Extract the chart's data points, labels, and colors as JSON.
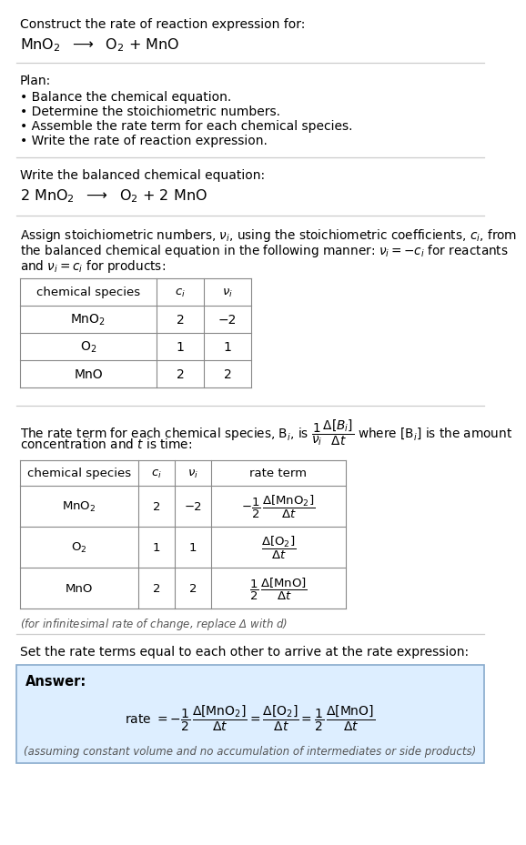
{
  "bg_color": "#ffffff",
  "text_color": "#000000",
  "title_line1": "Construct the rate of reaction expression for:",
  "reaction_unbalanced": "MnO$_2$  $\\longrightarrow$  O$_2$ + MnO",
  "plan_header": "Plan:",
  "plan_items": [
    "• Balance the chemical equation.",
    "• Determine the stoichiometric numbers.",
    "• Assemble the rate term for each chemical species.",
    "• Write the rate of reaction expression."
  ],
  "balanced_header": "Write the balanced chemical equation:",
  "reaction_balanced": "2 MnO$_2$  $\\longrightarrow$  O$_2$ + 2 MnO",
  "stoich_lines": [
    "Assign stoichiometric numbers, $\\nu_i$, using the stoichiometric coefficients, $c_i$, from",
    "the balanced chemical equation in the following manner: $\\nu_i = -c_i$ for reactants",
    "and $\\nu_i = c_i$ for products:"
  ],
  "table1_headers": [
    "chemical species",
    "$c_i$",
    "$\\nu_i$"
  ],
  "table1_col_styles": [
    "normal",
    "italic",
    "italic"
  ],
  "table1_rows": [
    [
      "MnO$_2$",
      "2",
      "−2"
    ],
    [
      "O$_2$",
      "1",
      "1"
    ],
    [
      "MnO",
      "2",
      "2"
    ]
  ],
  "rate_lines": [
    "The rate term for each chemical species, B$_i$, is $\\dfrac{1}{\\nu_i}\\dfrac{\\Delta[B_i]}{\\Delta t}$ where [B$_i$] is the amount",
    "concentration and $t$ is time:"
  ],
  "table2_headers": [
    "chemical species",
    "$c_i$",
    "$\\nu_i$",
    "rate term"
  ],
  "table2_col_styles": [
    "normal",
    "italic",
    "italic",
    "normal"
  ],
  "table2_rows": [
    [
      "MnO$_2$",
      "2",
      "−2",
      "$-\\dfrac{1}{2}\\,\\dfrac{\\Delta[\\mathrm{MnO_2}]}{\\Delta t}$"
    ],
    [
      "O$_2$",
      "1",
      "1",
      "$\\dfrac{\\Delta[\\mathrm{O_2}]}{\\Delta t}$"
    ],
    [
      "MnO",
      "2",
      "2",
      "$\\dfrac{1}{2}\\,\\dfrac{\\Delta[\\mathrm{MnO}]}{\\Delta t}$"
    ]
  ],
  "infinitesimal_note": "(for infinitesimal rate of change, replace Δ with $d$)",
  "set_equal_text": "Set the rate terms equal to each other to arrive at the rate expression:",
  "answer_box_color": "#ddeeff",
  "answer_box_border": "#88aacc",
  "answer_label": "Answer:",
  "answer_note": "(assuming constant volume and no accumulation of intermediates or side products)"
}
